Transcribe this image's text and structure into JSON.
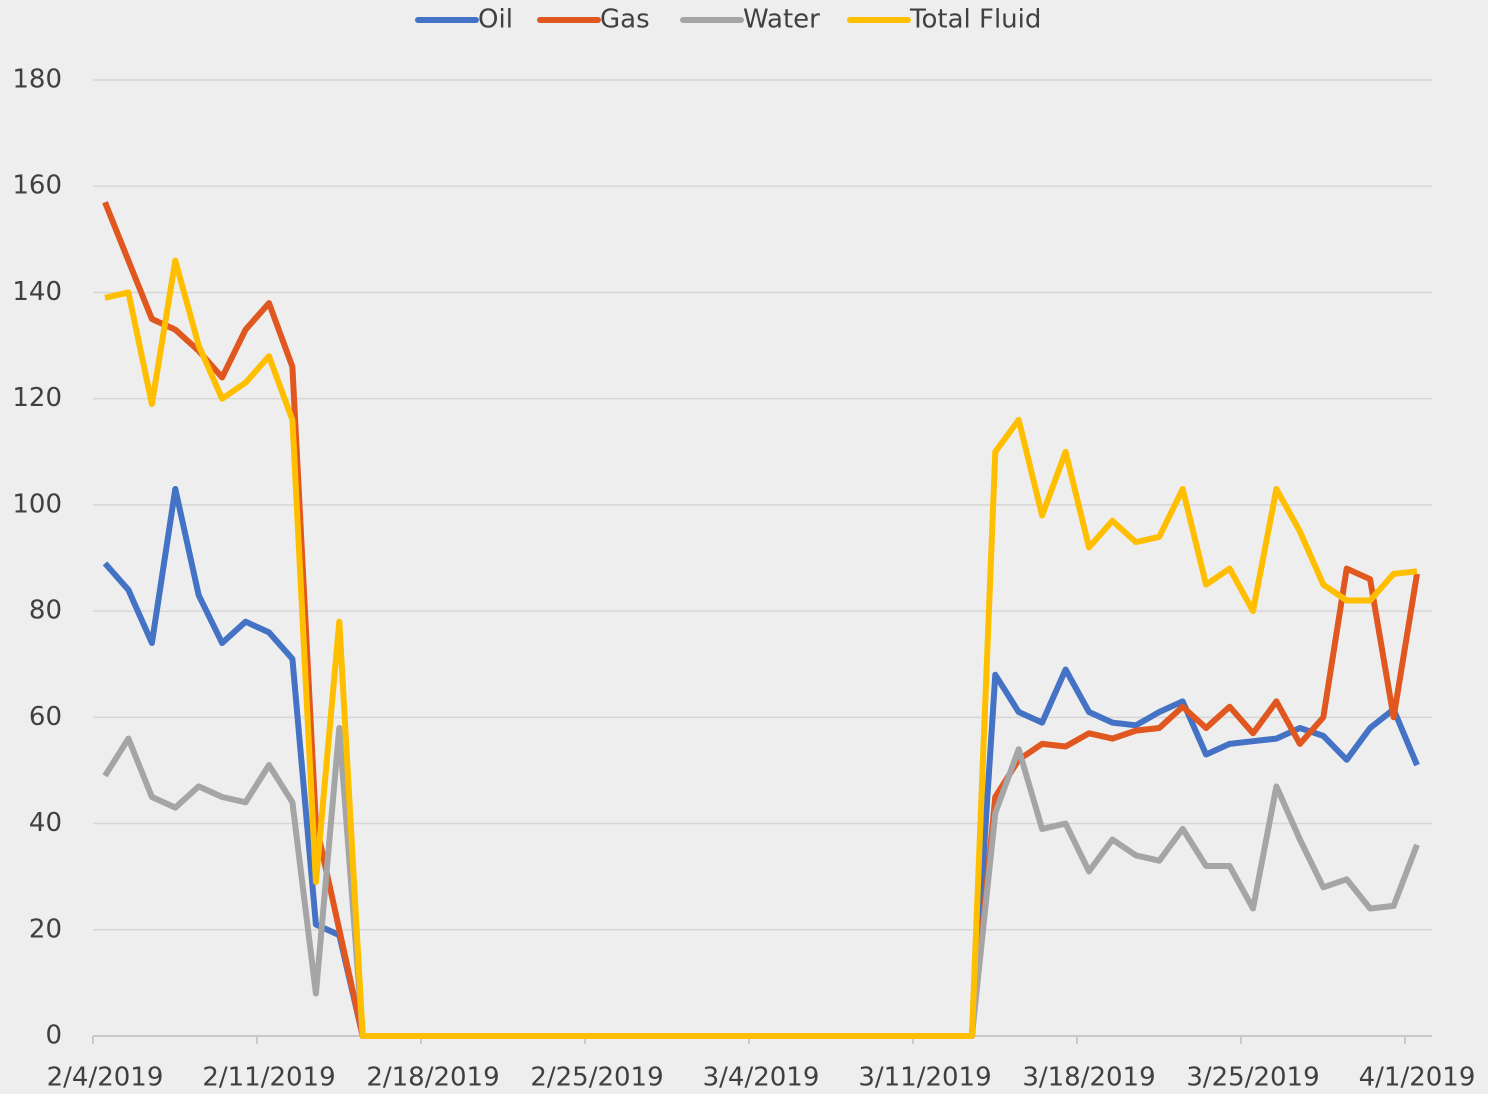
{
  "chart_data": {
    "type": "line",
    "x": [
      "2/4/2019",
      "2/5/2019",
      "2/6/2019",
      "2/7/2019",
      "2/8/2019",
      "2/9/2019",
      "2/10/2019",
      "2/11/2019",
      "2/12/2019",
      "2/13/2019",
      "2/14/2019",
      "2/15/2019",
      "2/16/2019",
      "2/17/2019",
      "2/18/2019",
      "2/19/2019",
      "2/20/2019",
      "2/21/2019",
      "2/22/2019",
      "2/23/2019",
      "2/24/2019",
      "2/25/2019",
      "2/26/2019",
      "2/27/2019",
      "2/28/2019",
      "3/1/2019",
      "3/2/2019",
      "3/3/2019",
      "3/4/2019",
      "3/5/2019",
      "3/6/2019",
      "3/7/2019",
      "3/8/2019",
      "3/9/2019",
      "3/10/2019",
      "3/11/2019",
      "3/12/2019",
      "3/13/2019",
      "3/14/2019",
      "3/15/2019",
      "3/16/2019",
      "3/17/2019",
      "3/18/2019",
      "3/19/2019",
      "3/20/2019",
      "3/21/2019",
      "3/22/2019",
      "3/23/2019",
      "3/24/2019",
      "3/25/2019",
      "3/26/2019",
      "3/27/2019",
      "3/28/2019",
      "3/29/2019",
      "3/30/2019",
      "3/31/2019",
      "4/1/2019"
    ],
    "xticks": [
      "2/4/2019",
      "2/11/2019",
      "2/18/2019",
      "2/25/2019",
      "3/4/2019",
      "3/11/2019",
      "3/18/2019",
      "3/25/2019",
      "4/1/2019"
    ],
    "series": [
      {
        "name": "Oil",
        "color": "#4472c4",
        "values": [
          89,
          84,
          74,
          103,
          83,
          74,
          78,
          76,
          71,
          21,
          19,
          0,
          0,
          0,
          0,
          0,
          0,
          0,
          0,
          0,
          0,
          0,
          0,
          0,
          0,
          0,
          0,
          0,
          0,
          0,
          0,
          0,
          0,
          0,
          0,
          0,
          0,
          0,
          68,
          61,
          59,
          69,
          61,
          59,
          58.5,
          61,
          63,
          53,
          55,
          55.5,
          56,
          58,
          56.5,
          52,
          58,
          61.5,
          51
        ]
      },
      {
        "name": "Gas",
        "color": "#e0571f",
        "values": [
          157,
          146,
          135,
          133,
          129,
          124,
          133,
          138,
          126,
          40,
          20,
          0,
          0,
          0,
          0,
          0,
          0,
          0,
          0,
          0,
          0,
          0,
          0,
          0,
          0,
          0,
          0,
          0,
          0,
          0,
          0,
          0,
          0,
          0,
          0,
          0,
          0,
          0,
          45,
          52,
          55,
          54.5,
          57,
          56,
          57.5,
          58,
          62,
          58,
          62,
          57,
          63,
          55,
          60,
          88,
          86,
          60,
          87
        ]
      },
      {
        "name": "Water",
        "color": "#a5a5a5",
        "values": [
          49,
          56,
          45,
          43,
          47,
          45,
          44,
          51,
          44,
          8,
          58,
          0,
          0,
          0,
          0,
          0,
          0,
          0,
          0,
          0,
          0,
          0,
          0,
          0,
          0,
          0,
          0,
          0,
          0,
          0,
          0,
          0,
          0,
          0,
          0,
          0,
          0,
          0,
          42,
          54,
          39,
          40,
          31,
          37,
          34,
          33,
          39,
          32,
          32,
          24,
          47,
          37,
          28,
          29.5,
          24,
          24.5,
          36
        ]
      },
      {
        "name": "Total Fluid",
        "color": "#ffbf00",
        "values": [
          139,
          140,
          119,
          146,
          130,
          120,
          123,
          128,
          116,
          29,
          78,
          0,
          0,
          0,
          0,
          0,
          0,
          0,
          0,
          0,
          0,
          0,
          0,
          0,
          0,
          0,
          0,
          0,
          0,
          0,
          0,
          0,
          0,
          0,
          0,
          0,
          0,
          0,
          110,
          116,
          98,
          110,
          92,
          97,
          93,
          94,
          103,
          85,
          88,
          80,
          103,
          95,
          85,
          82,
          82,
          87,
          87.5
        ]
      }
    ],
    "ylim": [
      0,
      180
    ],
    "yticks": [
      0,
      20,
      40,
      60,
      80,
      100,
      120,
      140,
      160,
      180
    ],
    "grid": true
  }
}
